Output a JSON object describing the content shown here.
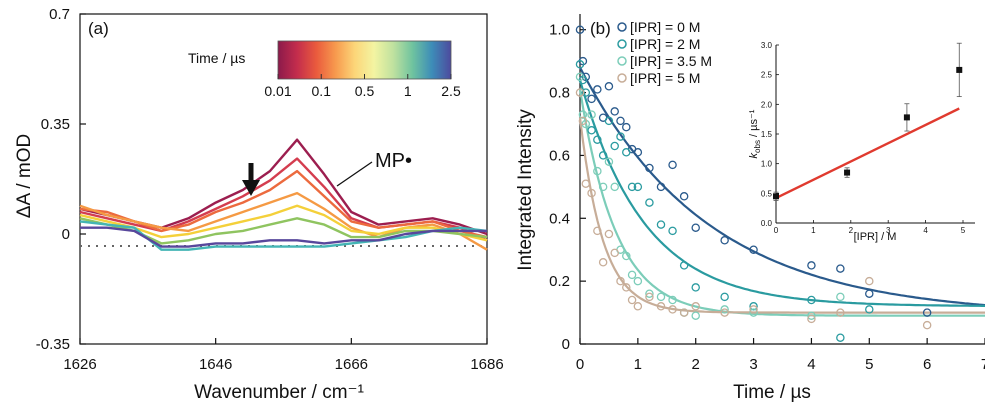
{
  "chart_data": [
    {
      "type": "line",
      "panel_label": "(a)",
      "xlabel": "Wavenumber / cm⁻¹",
      "ylabel": "ΔA / mOD",
      "xlim": [
        1626,
        1686
      ],
      "ylim": [
        -0.35,
        0.7
      ],
      "xticks": [
        "1626",
        "1646",
        "1666",
        "1686"
      ],
      "yticks": [
        "0.7",
        "0.35",
        "0",
        "-0.35"
      ],
      "colorbar": {
        "title": "Time / µs",
        "tick_labels": [
          "0.01",
          "0.1",
          "0.5",
          "1",
          "2.5"
        ],
        "colors": [
          "#8c1a4b",
          "#c42d4c",
          "#ea5b3d",
          "#f79a4e",
          "#fcd679",
          "#f3f4a2",
          "#bfe19f",
          "#6fc39f",
          "#3d8db8",
          "#4d4a9e"
        ]
      },
      "annotation": "MP•",
      "x": [
        1626,
        1630,
        1634,
        1638,
        1642,
        1646,
        1650,
        1654,
        1658,
        1662,
        1666,
        1670,
        1674,
        1678,
        1682,
        1686
      ],
      "series": [
        {
          "time": "0.01",
          "color": "#9c1e4f",
          "values": [
            0.08,
            0.06,
            0.04,
            0.02,
            0.05,
            0.1,
            0.14,
            0.2,
            0.3,
            0.19,
            0.07,
            0.03,
            0.04,
            0.05,
            0.03,
            0.0
          ]
        },
        {
          "time": "0.05",
          "color": "#d43d4f",
          "values": [
            0.07,
            0.05,
            0.03,
            0.01,
            0.04,
            0.08,
            0.12,
            0.17,
            0.24,
            0.15,
            0.05,
            0.02,
            0.03,
            0.04,
            0.02,
            -0.02
          ]
        },
        {
          "time": "0.1",
          "color": "#ec6a3e",
          "values": [
            0.08,
            0.07,
            0.04,
            0.01,
            0.03,
            0.07,
            0.1,
            0.14,
            0.2,
            0.12,
            0.04,
            0.02,
            0.03,
            0.04,
            0.01,
            -0.01
          ]
        },
        {
          "time": "0.3",
          "color": "#f59a44",
          "values": [
            0.09,
            0.06,
            0.04,
            0.02,
            0.01,
            0.04,
            0.07,
            0.1,
            0.13,
            0.08,
            0.02,
            -0.01,
            0.02,
            0.03,
            0.0,
            -0.05
          ]
        },
        {
          "time": "0.5",
          "color": "#f4d03a",
          "values": [
            0.06,
            0.04,
            0.02,
            -0.01,
            0.0,
            0.02,
            0.04,
            0.06,
            0.09,
            0.06,
            0.01,
            0.0,
            0.02,
            0.02,
            0.0,
            -0.02
          ]
        },
        {
          "time": "1",
          "color": "#8fc460",
          "values": [
            0.05,
            0.03,
            0.01,
            -0.03,
            -0.02,
            0.0,
            0.01,
            0.03,
            0.05,
            0.03,
            -0.01,
            -0.01,
            0.01,
            0.01,
            0.0,
            -0.01
          ]
        },
        {
          "time": "1.5",
          "color": "#44b5b5",
          "values": [
            0.04,
            0.03,
            0.02,
            -0.05,
            -0.05,
            -0.04,
            -0.04,
            -0.04,
            -0.04,
            -0.04,
            -0.03,
            -0.02,
            -0.01,
            0.01,
            0.02,
            0.01
          ]
        },
        {
          "time": "2.5",
          "color": "#58479c",
          "values": [
            0.02,
            0.02,
            0.01,
            -0.04,
            -0.04,
            -0.03,
            -0.03,
            -0.02,
            -0.02,
            -0.03,
            -0.02,
            -0.02,
            0.0,
            0.01,
            0.01,
            0.01
          ]
        }
      ]
    },
    {
      "type": "scatter",
      "panel_label": "(b)",
      "xlabel": "Time / µs",
      "ylabel": "Integrated Intensity",
      "xlim": [
        0,
        7
      ],
      "ylim": [
        0,
        1.05
      ],
      "xticks": [
        "0",
        "1",
        "2",
        "3",
        "4",
        "5",
        "6",
        "7"
      ],
      "yticks": [
        "0",
        "0.2",
        "0.4",
        "0.6",
        "0.8",
        "1.0"
      ],
      "series": [
        {
          "name": "[IPR] = 0 M",
          "color": "#2a5a8c",
          "x": [
            0,
            0.05,
            0.1,
            0.2,
            0.3,
            0.4,
            0.5,
            0.6,
            0.7,
            0.8,
            0.9,
            1.0,
            1.2,
            1.4,
            1.6,
            1.8,
            2.0,
            2.5,
            3.0,
            4.0,
            4.5,
            5.0,
            6.0
          ],
          "values": [
            1.0,
            0.9,
            0.85,
            0.78,
            0.81,
            0.72,
            0.82,
            0.74,
            0.71,
            0.69,
            0.62,
            0.61,
            0.56,
            0.5,
            0.57,
            0.47,
            0.37,
            0.33,
            0.3,
            0.25,
            0.24,
            0.16,
            0.1
          ],
          "fit_y0": 0.88,
          "fit_k": 0.45,
          "fit_offset": 0.09
        },
        {
          "name": "[IPR] = 2 M",
          "color": "#2a9ba0",
          "x": [
            0,
            0.05,
            0.1,
            0.2,
            0.3,
            0.4,
            0.5,
            0.6,
            0.7,
            0.8,
            0.9,
            1.0,
            1.2,
            1.4,
            1.6,
            1.8,
            2.0,
            2.5,
            3.0,
            4.0,
            4.5,
            5.0
          ],
          "values": [
            0.89,
            0.84,
            0.8,
            0.68,
            0.65,
            0.6,
            0.71,
            0.63,
            0.66,
            0.61,
            0.5,
            0.5,
            0.45,
            0.38,
            0.36,
            0.25,
            0.18,
            0.15,
            0.12,
            0.14,
            0.02,
            0.11
          ],
          "fit_y0": 0.84,
          "fit_k": 0.9,
          "fit_offset": 0.12
        },
        {
          "name": "[IPR] = 3.5 M",
          "color": "#7ccdb9",
          "x": [
            0,
            0.05,
            0.1,
            0.2,
            0.3,
            0.4,
            0.5,
            0.6,
            0.7,
            0.8,
            0.9,
            1.0,
            1.2,
            1.4,
            1.6,
            1.8,
            2.0,
            2.5,
            3.0,
            4.0,
            4.5
          ],
          "values": [
            0.85,
            0.73,
            0.7,
            0.73,
            0.55,
            0.5,
            0.58,
            0.5,
            0.3,
            0.28,
            0.22,
            0.2,
            0.16,
            0.15,
            0.14,
            0.1,
            0.09,
            0.11,
            0.1,
            0.09,
            0.15
          ],
          "fit_y0": 0.81,
          "fit_k": 1.6,
          "fit_offset": 0.09
        },
        {
          "name": "[IPR] = 5 M",
          "color": "#c7ad98",
          "x": [
            0,
            0.05,
            0.1,
            0.2,
            0.3,
            0.4,
            0.5,
            0.6,
            0.7,
            0.8,
            0.9,
            1.0,
            1.2,
            1.4,
            1.6,
            1.8,
            2.0,
            2.5,
            3.0,
            4.0,
            4.5,
            5.0,
            6.0
          ],
          "values": [
            0.8,
            0.71,
            0.51,
            0.48,
            0.36,
            0.26,
            0.35,
            0.29,
            0.2,
            0.18,
            0.14,
            0.12,
            0.15,
            0.12,
            0.11,
            0.1,
            0.12,
            0.1,
            0.11,
            0.08,
            0.1,
            0.2,
            0.06
          ],
          "fit_y0": 0.72,
          "fit_k": 2.5,
          "fit_offset": 0.1
        }
      ]
    },
    {
      "type": "scatter",
      "panel_label": "inset",
      "xlabel": "[IPR] / M",
      "ylabel": "k_obs / µs⁻¹",
      "ylabel_main": "k",
      "ylabel_sub": "obs",
      "ylabel_unit": " / µs⁻¹",
      "xlim": [
        0,
        5
      ],
      "ylim": [
        0,
        3.0
      ],
      "xticks": [
        "0",
        "1",
        "2",
        "3",
        "4",
        "5"
      ],
      "yticks": [
        "0.0",
        "0.5",
        "1.0",
        "1.5",
        "2.0",
        "2.5",
        "3.0"
      ],
      "points": [
        {
          "x": 0,
          "y": 0.45,
          "err": 0.07
        },
        {
          "x": 1.9,
          "y": 0.85,
          "err": 0.08
        },
        {
          "x": 3.5,
          "y": 1.78,
          "err": 0.23
        },
        {
          "x": 4.9,
          "y": 2.58,
          "err": 0.45
        }
      ],
      "fit_line": {
        "x": [
          0,
          4.9
        ],
        "y": [
          0.42,
          1.93
        ],
        "color": "#e03a2f"
      }
    }
  ]
}
